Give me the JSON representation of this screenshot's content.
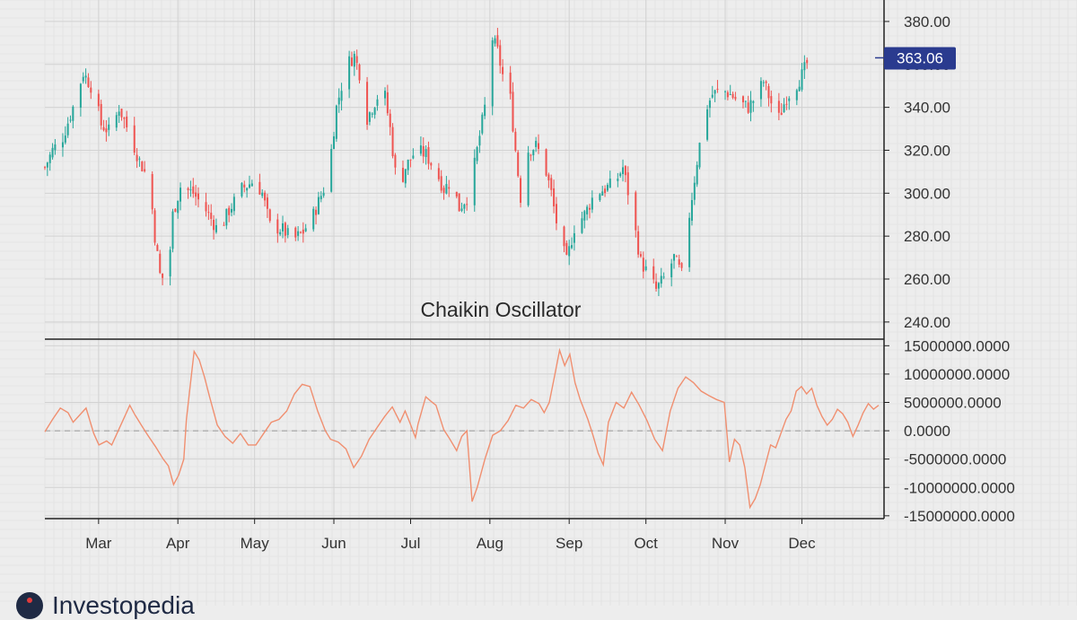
{
  "brand": {
    "name": "Investopedia",
    "logo_icon": "investopedia-logo-icon"
  },
  "colors": {
    "background": "#ededed",
    "grid": "#d2d2d2",
    "up": "#26a69a",
    "down": "#ef5350",
    "oscillator": "#f08f70",
    "badge": "#2a3b8f",
    "axis": "#222222"
  },
  "chart_data": [
    {
      "type": "candlestick",
      "title": "Chaikin Oscillator",
      "ylim": [
        232,
        390
      ],
      "yticks": [
        240,
        260,
        280,
        300,
        320,
        340,
        360,
        380
      ],
      "ytick_labels": [
        "240.00",
        "260.00",
        "280.00",
        "300.00",
        "320.00",
        "340.00",
        "360.00",
        "380.00"
      ],
      "last_price_label": "363.06",
      "last_price": 363.06,
      "x_months": [
        "Mar",
        "Apr",
        "May",
        "Jun",
        "Jul",
        "Aug",
        "Sep",
        "Oct",
        "Nov",
        "Dec"
      ],
      "x_month_days": [
        28,
        59,
        89,
        120,
        150,
        181,
        212,
        242,
        273,
        303
      ],
      "x_range_days": [
        7,
        310
      ],
      "close_anchors": [
        [
          7,
          312
        ],
        [
          10,
          320
        ],
        [
          14,
          326
        ],
        [
          18,
          340
        ],
        [
          22,
          356
        ],
        [
          26,
          348
        ],
        [
          29,
          332
        ],
        [
          33,
          328
        ],
        [
          36,
          340
        ],
        [
          40,
          328
        ],
        [
          44,
          315
        ],
        [
          48,
          305
        ],
        [
          50,
          280
        ],
        [
          52,
          262
        ],
        [
          55,
          258
        ],
        [
          57,
          290
        ],
        [
          60,
          303
        ],
        [
          65,
          300
        ],
        [
          70,
          292
        ],
        [
          75,
          282
        ],
        [
          79,
          292
        ],
        [
          84,
          302
        ],
        [
          89,
          306
        ],
        [
          92,
          300
        ],
        [
          95,
          285
        ],
        [
          100,
          283
        ],
        [
          104,
          278
        ],
        [
          108,
          282
        ],
        [
          112,
          290
        ],
        [
          116,
          302
        ],
        [
          119,
          320
        ],
        [
          121,
          340
        ],
        [
          125,
          360
        ],
        [
          128,
          364
        ],
        [
          131,
          352
        ],
        [
          133,
          335
        ],
        [
          137,
          345
        ],
        [
          140,
          345
        ],
        [
          142,
          330
        ],
        [
          145,
          300
        ],
        [
          148,
          312
        ],
        [
          152,
          320
        ],
        [
          156,
          318
        ],
        [
          160,
          310
        ],
        [
          163,
          302
        ],
        [
          166,
          306
        ],
        [
          169,
          293
        ],
        [
          173,
          300
        ],
        [
          176,
          320
        ],
        [
          179,
          340
        ],
        [
          182,
          372
        ],
        [
          184,
          366
        ],
        [
          186,
          355
        ],
        [
          189,
          344
        ],
        [
          191,
          320
        ],
        [
          193,
          298
        ],
        [
          196,
          320
        ],
        [
          199,
          322
        ],
        [
          202,
          315
        ],
        [
          205,
          300
        ],
        [
          208,
          280
        ],
        [
          211,
          268
        ],
        [
          214,
          284
        ],
        [
          218,
          290
        ],
        [
          222,
          300
        ],
        [
          226,
          302
        ],
        [
          230,
          305
        ],
        [
          233,
          312
        ],
        [
          236,
          295
        ],
        [
          240,
          268
        ],
        [
          243,
          262
        ],
        [
          246,
          255
        ],
        [
          250,
          262
        ],
        [
          253,
          270
        ],
        [
          256,
          262
        ],
        [
          259,
          290
        ],
        [
          262,
          315
        ],
        [
          265,
          338
        ],
        [
          268,
          346
        ],
        [
          272,
          348
        ],
        [
          275,
          346
        ],
        [
          279,
          342
        ],
        [
          282,
          340
        ],
        [
          285,
          345
        ],
        [
          288,
          352
        ],
        [
          291,
          342
        ],
        [
          294,
          335
        ],
        [
          297,
          345
        ],
        [
          300,
          349
        ],
        [
          303,
          355
        ],
        [
          306,
          363
        ]
      ],
      "xlabel": "",
      "ylabel": ""
    },
    {
      "type": "line",
      "series": [
        {
          "name": "",
          "points": [
            [
              7,
              -200000
            ],
            [
              10,
              2000000
            ],
            [
              13,
              4000000
            ],
            [
              16,
              3200000
            ],
            [
              18,
              1500000
            ],
            [
              21,
              3000000
            ],
            [
              23,
              4000000
            ],
            [
              26,
              -500000
            ],
            [
              28,
              -2500000
            ],
            [
              31,
              -1800000
            ],
            [
              33,
              -2500000
            ],
            [
              35,
              -500000
            ],
            [
              38,
              2500000
            ],
            [
              40,
              4500000
            ],
            [
              42,
              2800000
            ],
            [
              45,
              600000
            ],
            [
              47,
              -800000
            ],
            [
              50,
              -2800000
            ],
            [
              53,
              -5000000
            ],
            [
              55,
              -6200000
            ],
            [
              57,
              -9500000
            ],
            [
              59,
              -7800000
            ],
            [
              61,
              -5000000
            ],
            [
              62,
              2000000
            ],
            [
              64,
              10000000
            ],
            [
              65,
              14000000
            ],
            [
              67,
              12500000
            ],
            [
              69,
              9500000
            ],
            [
              71,
              6000000
            ],
            [
              74,
              1000000
            ],
            [
              77,
              -1000000
            ],
            [
              80,
              -2200000
            ],
            [
              83,
              -500000
            ],
            [
              86,
              -2500000
            ],
            [
              89,
              -2500000
            ],
            [
              92,
              -500000
            ],
            [
              95,
              1500000
            ],
            [
              98,
              2000000
            ],
            [
              101,
              3500000
            ],
            [
              104,
              6500000
            ],
            [
              107,
              8200000
            ],
            [
              110,
              7800000
            ],
            [
              113,
              3500000
            ],
            [
              116,
              0
            ],
            [
              118,
              -1500000
            ],
            [
              121,
              -2000000
            ],
            [
              124,
              -3200000
            ],
            [
              127,
              -6500000
            ],
            [
              130,
              -4500000
            ],
            [
              133,
              -1500000
            ],
            [
              136,
              500000
            ],
            [
              139,
              2500000
            ],
            [
              142,
              4200000
            ],
            [
              145,
              1500000
            ],
            [
              147,
              3500000
            ],
            [
              149,
              1200000
            ],
            [
              151,
              -1200000
            ],
            [
              152,
              1200000
            ],
            [
              155,
              6000000
            ],
            [
              157,
              5200000
            ],
            [
              159,
              4500000
            ],
            [
              162,
              200000
            ],
            [
              164,
              -1200000
            ],
            [
              167,
              -3500000
            ],
            [
              169,
              -1000000
            ],
            [
              171,
              0
            ],
            [
              173,
              -12500000
            ],
            [
              175,
              -10000000
            ],
            [
              178,
              -5000000
            ],
            [
              181,
              -800000
            ],
            [
              184,
              0
            ],
            [
              187,
              1800000
            ],
            [
              190,
              4500000
            ],
            [
              193,
              4000000
            ],
            [
              196,
              5500000
            ],
            [
              199,
              4800000
            ],
            [
              201,
              3200000
            ],
            [
              203,
              5000000
            ],
            [
              205,
              9500000
            ],
            [
              207,
              14200000
            ],
            [
              209,
              11500000
            ],
            [
              211,
              13500000
            ],
            [
              213,
              8500000
            ],
            [
              215,
              5500000
            ],
            [
              218,
              2000000
            ],
            [
              220,
              -800000
            ],
            [
              222,
              -4000000
            ],
            [
              224,
              -6000000
            ],
            [
              226,
              1500000
            ],
            [
              229,
              5000000
            ],
            [
              232,
              4000000
            ],
            [
              235,
              6800000
            ],
            [
              238,
              4500000
            ],
            [
              241,
              1800000
            ],
            [
              244,
              -1500000
            ],
            [
              247,
              -3500000
            ],
            [
              250,
              3500000
            ],
            [
              253,
              7500000
            ],
            [
              256,
              9500000
            ],
            [
              259,
              8500000
            ],
            [
              262,
              7000000
            ],
            [
              265,
              6200000
            ],
            [
              268,
              5500000
            ],
            [
              271,
              5000000
            ],
            [
              273,
              -5500000
            ],
            [
              275,
              -1500000
            ],
            [
              277,
              -2500000
            ],
            [
              279,
              -6500000
            ],
            [
              281,
              -13500000
            ],
            [
              283,
              -12000000
            ],
            [
              285,
              -9500000
            ],
            [
              287,
              -6000000
            ],
            [
              289,
              -2500000
            ],
            [
              291,
              -3000000
            ],
            [
              293,
              -500000
            ],
            [
              295,
              2000000
            ],
            [
              297,
              3500000
            ],
            [
              299,
              7000000
            ],
            [
              301,
              7800000
            ],
            [
              303,
              6500000
            ],
            [
              305,
              7500000
            ],
            [
              307,
              4500000
            ],
            [
              309,
              2500000
            ],
            [
              311,
              1000000
            ],
            [
              313,
              2000000
            ],
            [
              315,
              3800000
            ],
            [
              317,
              3000000
            ],
            [
              319,
              1500000
            ],
            [
              321,
              -1000000
            ],
            [
              323,
              1000000
            ],
            [
              325,
              3200000
            ],
            [
              327,
              4800000
            ],
            [
              329,
              3800000
            ],
            [
              331,
              4500000
            ]
          ]
        }
      ],
      "ylim": [
        -15500000,
        16000000
      ],
      "yticks": [
        15000000,
        10000000,
        5000000,
        0,
        -5000000,
        -10000000,
        -15000000
      ],
      "ytick_labels": [
        "15000000.0000",
        "10000000.0000",
        "5000000.0000",
        "0.0000",
        "-5000000.0000",
        "-10000000.0000",
        "-15000000.0000"
      ],
      "zero_line": "dashed",
      "x_range_days": [
        7,
        331
      ]
    }
  ]
}
